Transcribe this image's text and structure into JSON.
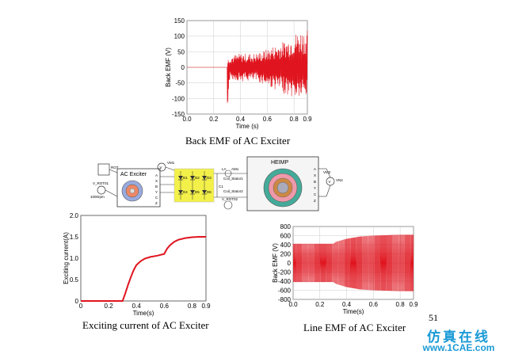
{
  "page_number": "51",
  "watermark": {
    "chinese": "仿真在线",
    "url": "www.1CAE.com"
  },
  "captions": {
    "back_emf": "Back EMF of AC Exciter",
    "exciting": "Exciting current of AC Exciter",
    "line_emf": "Line EMF of AC Exciter"
  },
  "diagram": {
    "ac_exciter_title": "AC Exciter",
    "heimp_title": "HEIMP",
    "labels": [
      "ROT",
      "VM1",
      "V_ROT01",
      "1000rpm",
      "AM1",
      "VM2",
      "V_ROT02",
      "Coil_Stator1",
      "Coil_Stator2",
      "C1",
      "LA",
      "VN2"
    ],
    "exciter_pins": [
      "A",
      "X",
      "B",
      "Y",
      "C",
      "Z"
    ],
    "heimp_pins": [
      "A",
      "X",
      "B",
      "Y",
      "C",
      "Z"
    ],
    "diode_labels": [
      "D1",
      "D2",
      "D3",
      "D4",
      "D5",
      "D6"
    ]
  },
  "chart_data": [
    {
      "type": "line",
      "title": "Back EMF of AC Exciter",
      "xlabel": "Time (s)",
      "ylabel": "Back EMF (V)",
      "xlim": [
        0.0,
        0.9
      ],
      "ylim": [
        -150,
        150
      ],
      "xticks": [
        "0.0",
        "0.2",
        "0.4",
        "0.6",
        "0.8",
        "0.9"
      ],
      "yticks": [
        "150",
        "100",
        "50",
        "0",
        "-50",
        "-100",
        "-150"
      ],
      "grid": true,
      "series": [
        {
          "color": "#e0141e",
          "x": [
            0.0,
            0.3,
            0.3,
            0.32,
            0.35,
            0.4,
            0.45,
            0.5,
            0.55,
            0.6,
            0.65,
            0.7,
            0.75,
            0.8,
            0.85,
            0.9
          ],
          "y_envelope_upper": [
            0,
            0,
            20,
            40,
            40,
            45,
            45,
            45,
            50,
            60,
            70,
            80,
            90,
            110,
            120,
            120
          ],
          "y_envelope_lower": [
            0,
            0,
            -150,
            -40,
            -40,
            -45,
            -45,
            -45,
            -50,
            -60,
            -70,
            -80,
            -90,
            -100,
            -100,
            -100
          ]
        }
      ]
    },
    {
      "type": "line",
      "title": "Exciting current of AC Exciter",
      "xlabel": "Time(s)",
      "ylabel": "Exciting current(A)",
      "xlim": [
        0.0,
        0.9
      ],
      "ylim": [
        0,
        2.0
      ],
      "xticks": [
        "0",
        "0.2",
        "0.4",
        "0.6",
        "0.8",
        "0.9"
      ],
      "yticks": [
        "2.0",
        "1.5",
        "1.0",
        "0.5",
        "0"
      ],
      "grid": false,
      "series": [
        {
          "color": "#e0141e",
          "x": [
            0.0,
            0.3,
            0.32,
            0.34,
            0.36,
            0.38,
            0.4,
            0.43,
            0.46,
            0.5,
            0.55,
            0.6,
            0.62,
            0.64,
            0.67,
            0.7,
            0.75,
            0.8,
            0.85,
            0.9
          ],
          "y": [
            0,
            0,
            0.18,
            0.38,
            0.56,
            0.72,
            0.84,
            0.93,
            0.99,
            1.03,
            1.06,
            1.1,
            1.22,
            1.3,
            1.38,
            1.43,
            1.47,
            1.49,
            1.5,
            1.5
          ]
        }
      ]
    },
    {
      "type": "line",
      "title": "Line EMF of AC Exciter",
      "xlabel": "Time(s)",
      "ylabel": "Back EMF (V)",
      "xlim": [
        0.0,
        0.9
      ],
      "ylim": [
        -800,
        800
      ],
      "xticks": [
        "0.0",
        "0.2",
        "0.4",
        "0.6",
        "0.8",
        "0.9"
      ],
      "yticks": [
        "800",
        "600",
        "400",
        "200",
        "0",
        "-200",
        "-400",
        "-600",
        "-800"
      ],
      "grid": true,
      "series": [
        {
          "color": "#e0141e",
          "x": [
            0.0,
            0.3,
            0.32,
            0.4,
            0.5,
            0.6,
            0.7,
            0.8,
            0.9
          ],
          "y_envelope_upper": [
            420,
            420,
            460,
            530,
            580,
            600,
            610,
            620,
            620
          ],
          "y_envelope_lower": [
            -420,
            -420,
            -460,
            -530,
            -580,
            -600,
            -610,
            -620,
            -620
          ]
        }
      ]
    }
  ]
}
